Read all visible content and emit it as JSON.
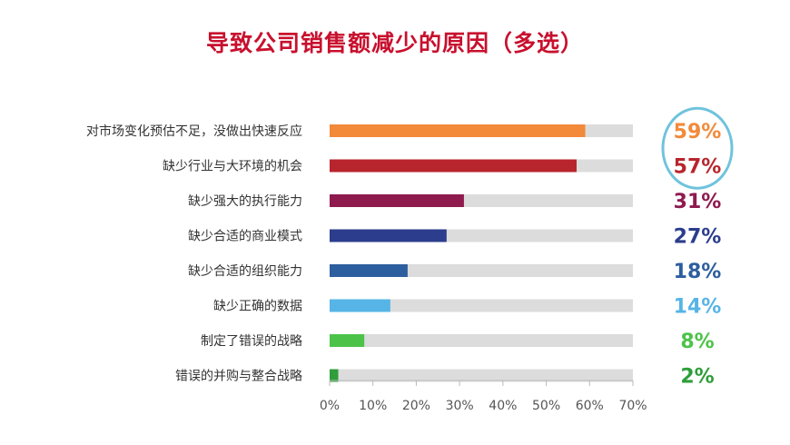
{
  "title": "导致公司销售额减少的原因（多选）",
  "chart_data": {
    "type": "bar",
    "orientation": "horizontal",
    "categories": [
      "对市场变化预估不足，没做出快速反应",
      "缺少行业与大环境的机会",
      "缺少强大的执行能力",
      "缺少合适的商业模式",
      "缺少合适的组织能力",
      "缺少正确的数据",
      "制定了错误的战略",
      "错误的并购与整合战略"
    ],
    "values": [
      59,
      57,
      31,
      27,
      18,
      14,
      8,
      2
    ],
    "value_labels": [
      "59%",
      "57%",
      "31%",
      "27%",
      "18%",
      "14%",
      "8%",
      "2%"
    ],
    "colors": [
      "#f28a3a",
      "#b8252c",
      "#8e1a4e",
      "#2b3d8c",
      "#2d5e9e",
      "#56b4e6",
      "#4cc348",
      "#2e9e3a"
    ],
    "track_color": "#dcdcdc",
    "highlight_color": "#6fc3dc",
    "xlim": [
      0,
      70
    ],
    "xticks": [
      "0%",
      "10%",
      "20%",
      "30%",
      "40%",
      "50%",
      "60%",
      "70%"
    ],
    "xlabel": "",
    "ylabel": "",
    "grid": false,
    "legend": "none"
  }
}
